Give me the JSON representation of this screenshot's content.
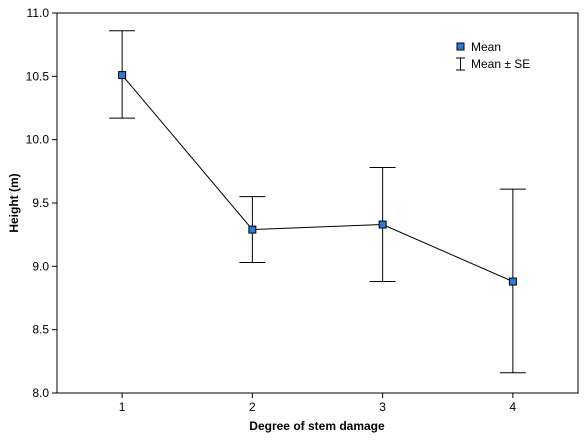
{
  "chart_data": {
    "type": "line",
    "title": "",
    "xlabel": "Degree of stem damage",
    "ylabel": "Height (m)",
    "x": [
      1,
      2,
      3,
      4
    ],
    "xticks": [
      1,
      2,
      3,
      4
    ],
    "xlim": [
      0.5,
      4.5
    ],
    "ylim": [
      8.0,
      11.0
    ],
    "yticks": [
      8.0,
      8.5,
      9.0,
      9.5,
      10.0,
      10.5,
      11.0
    ],
    "ytick_labels": [
      "8.0",
      "8.5",
      "9.0",
      "9.5",
      "10.0",
      "10.5",
      "11.0"
    ],
    "grid": false,
    "legend_position": "top-right",
    "series": [
      {
        "name": "Mean",
        "values": [
          10.51,
          9.29,
          9.33,
          8.88
        ],
        "marker": "square",
        "marker_color": "#2b7bd6",
        "line_color": "#000000"
      }
    ],
    "error_bars": {
      "name": "Mean ± SE",
      "upper": [
        10.86,
        9.55,
        9.78,
        9.61
      ],
      "lower": [
        10.17,
        9.03,
        8.88,
        8.16
      ]
    }
  }
}
